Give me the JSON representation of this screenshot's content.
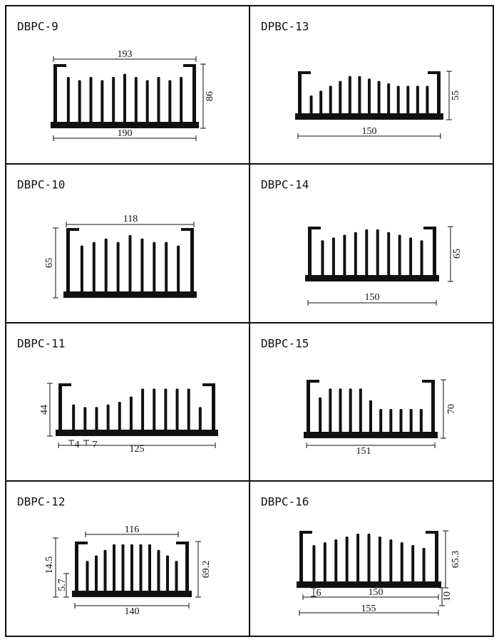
{
  "panels": [
    {
      "title": "DBPC-9",
      "dims": [
        "193",
        "86",
        "190"
      ]
    },
    {
      "title": "DPBC-13",
      "dims": [
        "55",
        "150"
      ]
    },
    {
      "title": "DBPC-10",
      "dims": [
        "118",
        "65"
      ]
    },
    {
      "title": "DBPC-14",
      "dims": [
        "65",
        "150"
      ]
    },
    {
      "title": "DBPC-11",
      "dims": [
        "44",
        "125",
        "4",
        "7"
      ]
    },
    {
      "title": "DBPC-15",
      "dims": [
        "70",
        "151"
      ]
    },
    {
      "title": "DBPC-12",
      "dims": [
        "116",
        "14.5",
        "5.7",
        "69.2",
        "140"
      ]
    },
    {
      "title": "DBPC-16",
      "dims": [
        "65.3",
        "6",
        "150",
        "10",
        "155"
      ]
    }
  ]
}
